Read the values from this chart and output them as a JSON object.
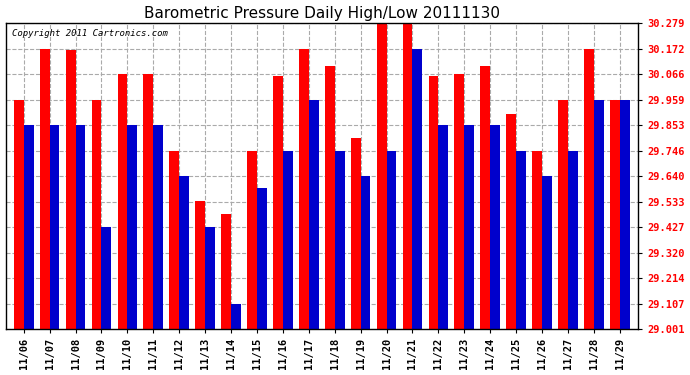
{
  "title": "Barometric Pressure Daily High/Low 20111130",
  "copyright": "Copyright 2011 Cartronics.com",
  "background_color": "#ffffff",
  "plot_background": "#ffffff",
  "bar_color_high": "#ff0000",
  "bar_color_low": "#0000cc",
  "grid_color": "#aaaaaa",
  "ytick_color": "#ff0000",
  "ylim": [
    29.001,
    30.279
  ],
  "yticks": [
    29.001,
    29.107,
    29.214,
    29.32,
    29.427,
    29.533,
    29.64,
    29.746,
    29.853,
    29.959,
    30.066,
    30.172,
    30.279
  ],
  "dates": [
    "11/06",
    "11/07",
    "11/08",
    "11/09",
    "11/10",
    "11/11",
    "11/12",
    "11/13",
    "11/14",
    "11/15",
    "11/16",
    "11/17",
    "11/18",
    "11/19",
    "11/20",
    "11/21",
    "11/22",
    "11/23",
    "11/24",
    "11/25",
    "11/26",
    "11/27",
    "11/28",
    "11/29"
  ],
  "highs": [
    29.96,
    30.172,
    30.165,
    29.96,
    30.066,
    30.066,
    29.746,
    29.535,
    29.48,
    29.746,
    30.06,
    30.172,
    30.1,
    29.8,
    30.279,
    30.279,
    30.06,
    30.066,
    30.1,
    29.9,
    29.746,
    29.96,
    30.172,
    29.96
  ],
  "lows": [
    29.853,
    29.853,
    29.853,
    29.427,
    29.853,
    29.853,
    29.64,
    29.427,
    29.107,
    29.59,
    29.746,
    29.959,
    29.746,
    29.64,
    29.746,
    30.172,
    29.853,
    29.853,
    29.853,
    29.746,
    29.64,
    29.746,
    29.959,
    29.959
  ],
  "bar_width": 0.38,
  "title_fontsize": 11,
  "tick_fontsize": 7.5
}
